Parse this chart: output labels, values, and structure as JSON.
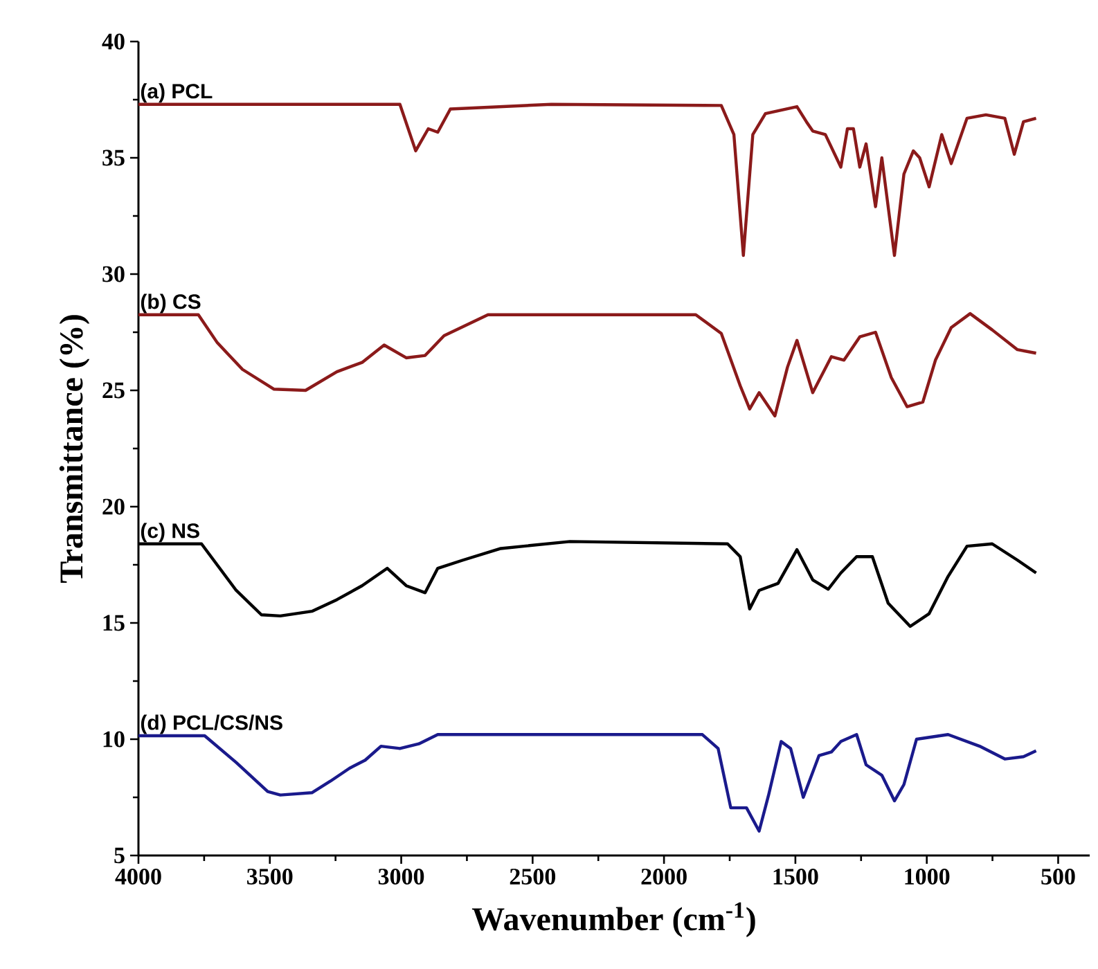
{
  "chart_data": {
    "type": "line",
    "xlabel": "Wavenumber (cm$^{-1}$)",
    "ylabel": "Transmittance (%)",
    "xlim": [
      4000,
      380
    ],
    "ylim": [
      5,
      40
    ],
    "xticks": [
      4000,
      3500,
      3000,
      2500,
      2000,
      1500,
      1000,
      500
    ],
    "yticks": [
      5,
      10,
      15,
      20,
      25,
      30,
      35,
      40
    ],
    "marker": "none",
    "line_style": "solid",
    "legend": false,
    "grid": false,
    "series": [
      {
        "name": "(a) PCL",
        "color": "#8b1a1a",
        "x": [
          4000,
          3005,
          2945,
          2897,
          2861,
          2813,
          2429,
          1782,
          1734,
          1698,
          1662,
          1614,
          1494,
          1458,
          1434,
          1386,
          1327,
          1302,
          1279,
          1255,
          1231,
          1195,
          1171,
          1123,
          1087,
          1051,
          1027,
          991,
          943,
          907,
          847,
          775,
          703,
          667,
          632,
          584
        ],
        "values": [
          37.3,
          37.3,
          35.3,
          36.25,
          36.1,
          37.1,
          37.3,
          37.25,
          36.0,
          30.8,
          36.0,
          36.9,
          37.2,
          36.55,
          36.15,
          36.0,
          34.6,
          36.25,
          36.25,
          34.6,
          35.6,
          32.9,
          35.0,
          30.8,
          34.3,
          35.3,
          35.0,
          33.75,
          36.0,
          34.75,
          36.7,
          36.85,
          36.7,
          35.15,
          36.55,
          36.7
        ]
      },
      {
        "name": "(b) CS",
        "color": "#8b1a1a",
        "x": [
          4000,
          3772,
          3700,
          3604,
          3484,
          3364,
          3245,
          3149,
          3065,
          2981,
          2909,
          2837,
          2670,
          1879,
          1782,
          1710,
          1674,
          1638,
          1578,
          1530,
          1494,
          1434,
          1363,
          1315,
          1255,
          1195,
          1135,
          1075,
          1015,
          967,
          907,
          835,
          751,
          655,
          584
        ],
        "values": [
          28.25,
          28.25,
          27.05,
          25.9,
          25.05,
          25.0,
          25.8,
          26.2,
          26.95,
          26.4,
          26.5,
          27.35,
          28.25,
          28.25,
          27.45,
          25.2,
          24.2,
          24.9,
          23.9,
          26.0,
          27.15,
          24.9,
          26.45,
          26.3,
          27.3,
          27.5,
          25.55,
          24.3,
          24.5,
          26.3,
          27.7,
          28.3,
          27.6,
          26.75,
          26.6
        ]
      },
      {
        "name": "(c) NS",
        "color": "#000000",
        "x": [
          4000,
          3760,
          3628,
          3532,
          3460,
          3340,
          3245,
          3149,
          3053,
          2981,
          2909,
          2861,
          2765,
          2621,
          2358,
          1758,
          1710,
          1674,
          1638,
          1566,
          1494,
          1434,
          1375,
          1327,
          1267,
          1207,
          1147,
          1063,
          991,
          919,
          847,
          751,
          655,
          584
        ],
        "values": [
          18.4,
          18.4,
          16.4,
          15.35,
          15.3,
          15.5,
          16.0,
          16.6,
          17.35,
          16.6,
          16.3,
          17.35,
          17.7,
          18.2,
          18.5,
          18.4,
          17.85,
          15.6,
          16.4,
          16.7,
          18.15,
          16.85,
          16.45,
          17.15,
          17.85,
          17.85,
          15.85,
          14.85,
          15.4,
          17.0,
          18.3,
          18.4,
          17.7,
          17.15
        ]
      },
      {
        "name": "(d) PCL/CS/NS",
        "color": "#1a1a8c",
        "x": [
          4000,
          3748,
          3628,
          3508,
          3460,
          3340,
          3269,
          3197,
          3137,
          3077,
          3005,
          2933,
          2861,
          1854,
          1794,
          1746,
          1686,
          1638,
          1602,
          1554,
          1518,
          1470,
          1410,
          1363,
          1327,
          1267,
          1231,
          1171,
          1123,
          1087,
          1039,
          919,
          799,
          703,
          632,
          584
        ],
        "values": [
          10.15,
          10.15,
          9.0,
          7.75,
          7.6,
          7.7,
          8.2,
          8.75,
          9.1,
          9.7,
          9.6,
          9.8,
          10.2,
          10.2,
          9.6,
          7.05,
          7.05,
          6.05,
          7.6,
          9.9,
          9.6,
          7.5,
          9.3,
          9.45,
          9.9,
          10.2,
          8.9,
          8.45,
          7.35,
          8.05,
          10.0,
          10.2,
          9.7,
          9.15,
          9.25,
          9.5
        ]
      }
    ]
  }
}
